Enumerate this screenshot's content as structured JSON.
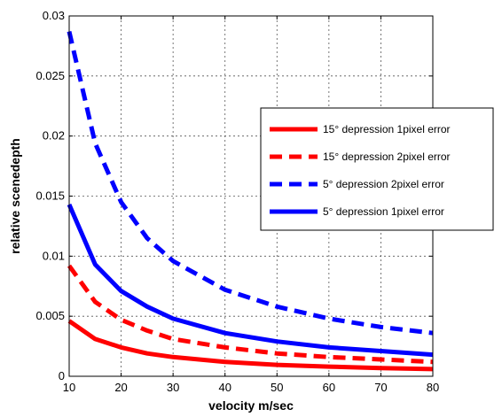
{
  "chart_data": {
    "type": "line",
    "xlabel": "velocity m/sec",
    "ylabel": "relative scenedepth",
    "xlim": [
      10,
      80
    ],
    "ylim": [
      0,
      0.03
    ],
    "xticks": [
      "10",
      "20",
      "30",
      "40",
      "50",
      "60",
      "70",
      "80"
    ],
    "yticks": [
      "0",
      "0.005",
      "0.01",
      "0.015",
      "0.02",
      "0.025",
      "0.03"
    ],
    "grid": true,
    "legend_position": "right",
    "x": [
      10,
      15,
      20,
      25,
      30,
      40,
      50,
      60,
      70,
      80
    ],
    "series": [
      {
        "name": "15° depression 1pixel error",
        "color": "#ff0000",
        "dash": "solid",
        "values": [
          0.0046,
          0.0031,
          0.0024,
          0.0019,
          0.0016,
          0.0012,
          0.00095,
          0.0008,
          0.00068,
          0.0006
        ]
      },
      {
        "name": "15° depression 2pixel error",
        "color": "#ff0000",
        "dash": "dashed",
        "values": [
          0.0092,
          0.0062,
          0.0047,
          0.0038,
          0.0031,
          0.0024,
          0.0019,
          0.0016,
          0.0014,
          0.0012
        ]
      },
      {
        "name": "5° depression 2pixel error",
        "color": "#0000ff",
        "dash": "dashed",
        "values": [
          0.0287,
          0.0194,
          0.0145,
          0.0115,
          0.0096,
          0.0072,
          0.0058,
          0.0048,
          0.0041,
          0.0036
        ]
      },
      {
        "name": "5° depression 1pixel error",
        "color": "#0000ff",
        "dash": "solid",
        "values": [
          0.0143,
          0.0093,
          0.0071,
          0.0058,
          0.0048,
          0.0036,
          0.0029,
          0.0024,
          0.0021,
          0.0018
        ]
      }
    ]
  }
}
